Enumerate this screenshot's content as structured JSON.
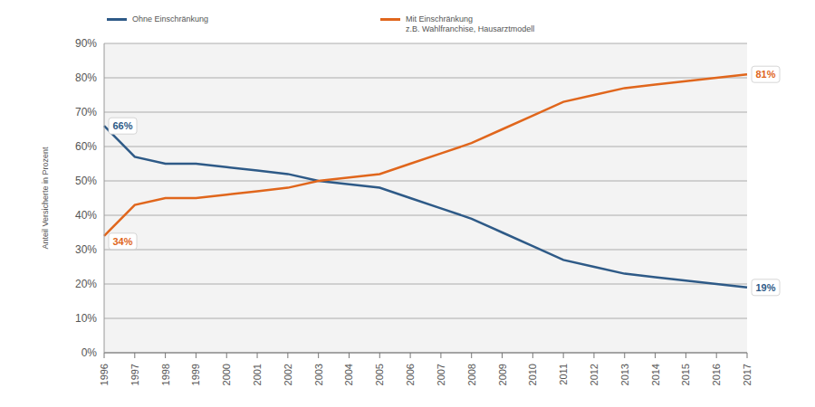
{
  "chart_data": {
    "type": "line",
    "y_label": "Anteil Versicherte in Prozent",
    "categories": [
      "1996",
      "1997",
      "1998",
      "1999",
      "2000",
      "2001",
      "2002",
      "2003",
      "2004",
      "2005",
      "2006",
      "2007",
      "2008",
      "2009",
      "2010",
      "2011",
      "2012",
      "2013",
      "2014",
      "2015",
      "2016",
      "2017"
    ],
    "series": [
      {
        "name": "Ohne Einschränkung",
        "color": "#2e5a87",
        "values": [
          66,
          57,
          55,
          55,
          54,
          53,
          52,
          50,
          49,
          48,
          45,
          42,
          39,
          35,
          31,
          27,
          25,
          23,
          22,
          21,
          20,
          19
        ],
        "value_labels": [
          "66%",
          null,
          null,
          null,
          null,
          null,
          null,
          null,
          null,
          null,
          null,
          null,
          null,
          null,
          null,
          null,
          null,
          null,
          null,
          null,
          null,
          "19%"
        ]
      },
      {
        "name": "Mit Einschränkung",
        "description": "z.B. Wahlfranchise, Hausarztmodell",
        "color": "#e0661c",
        "values": [
          34,
          43,
          45,
          45,
          46,
          47,
          48,
          50,
          51,
          52,
          55,
          58,
          61,
          65,
          69,
          73,
          75,
          77,
          78,
          79,
          80,
          81
        ],
        "value_labels": [
          "34%",
          null,
          null,
          null,
          null,
          null,
          null,
          null,
          null,
          null,
          null,
          null,
          null,
          null,
          null,
          null,
          null,
          null,
          null,
          null,
          null,
          "81%"
        ]
      }
    ],
    "ylim": [
      0,
      90
    ],
    "yticks": [
      {
        "value": 0,
        "label": "0%"
      },
      {
        "value": 10,
        "label": "10%"
      },
      {
        "value": 20,
        "label": "20%"
      },
      {
        "value": 30,
        "label": "30%"
      },
      {
        "value": 40,
        "label": "40%"
      },
      {
        "value": 50,
        "label": "50%"
      },
      {
        "value": 60,
        "label": "60%"
      },
      {
        "value": 70,
        "label": "70%"
      },
      {
        "value": 80,
        "label": "80%"
      },
      {
        "value": 90,
        "label": "90%"
      }
    ],
    "grid": true
  }
}
